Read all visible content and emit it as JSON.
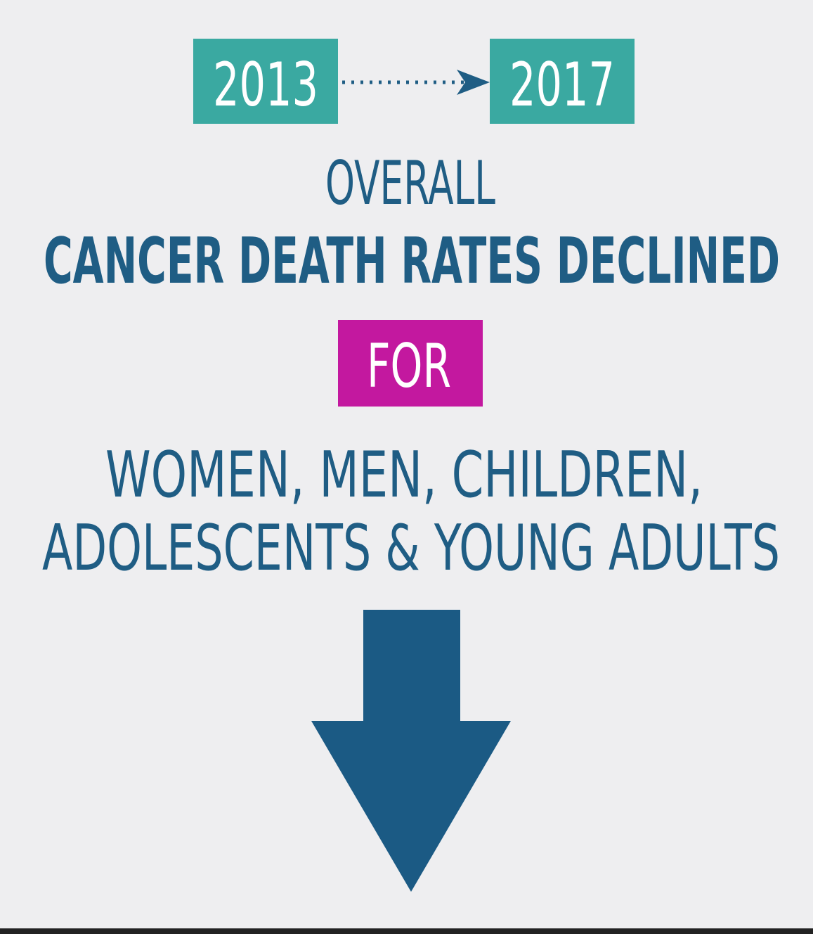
{
  "years": {
    "start": "2013",
    "end": "2017"
  },
  "headline": {
    "intro": "OVERALL",
    "main": "CANCER DEATH RATES DECLINED",
    "connector": "FOR",
    "groups": [
      "WOMEN, MEN, CHILDREN,",
      "ADOLESCENTS & YOUNG ADULTS"
    ]
  }
}
